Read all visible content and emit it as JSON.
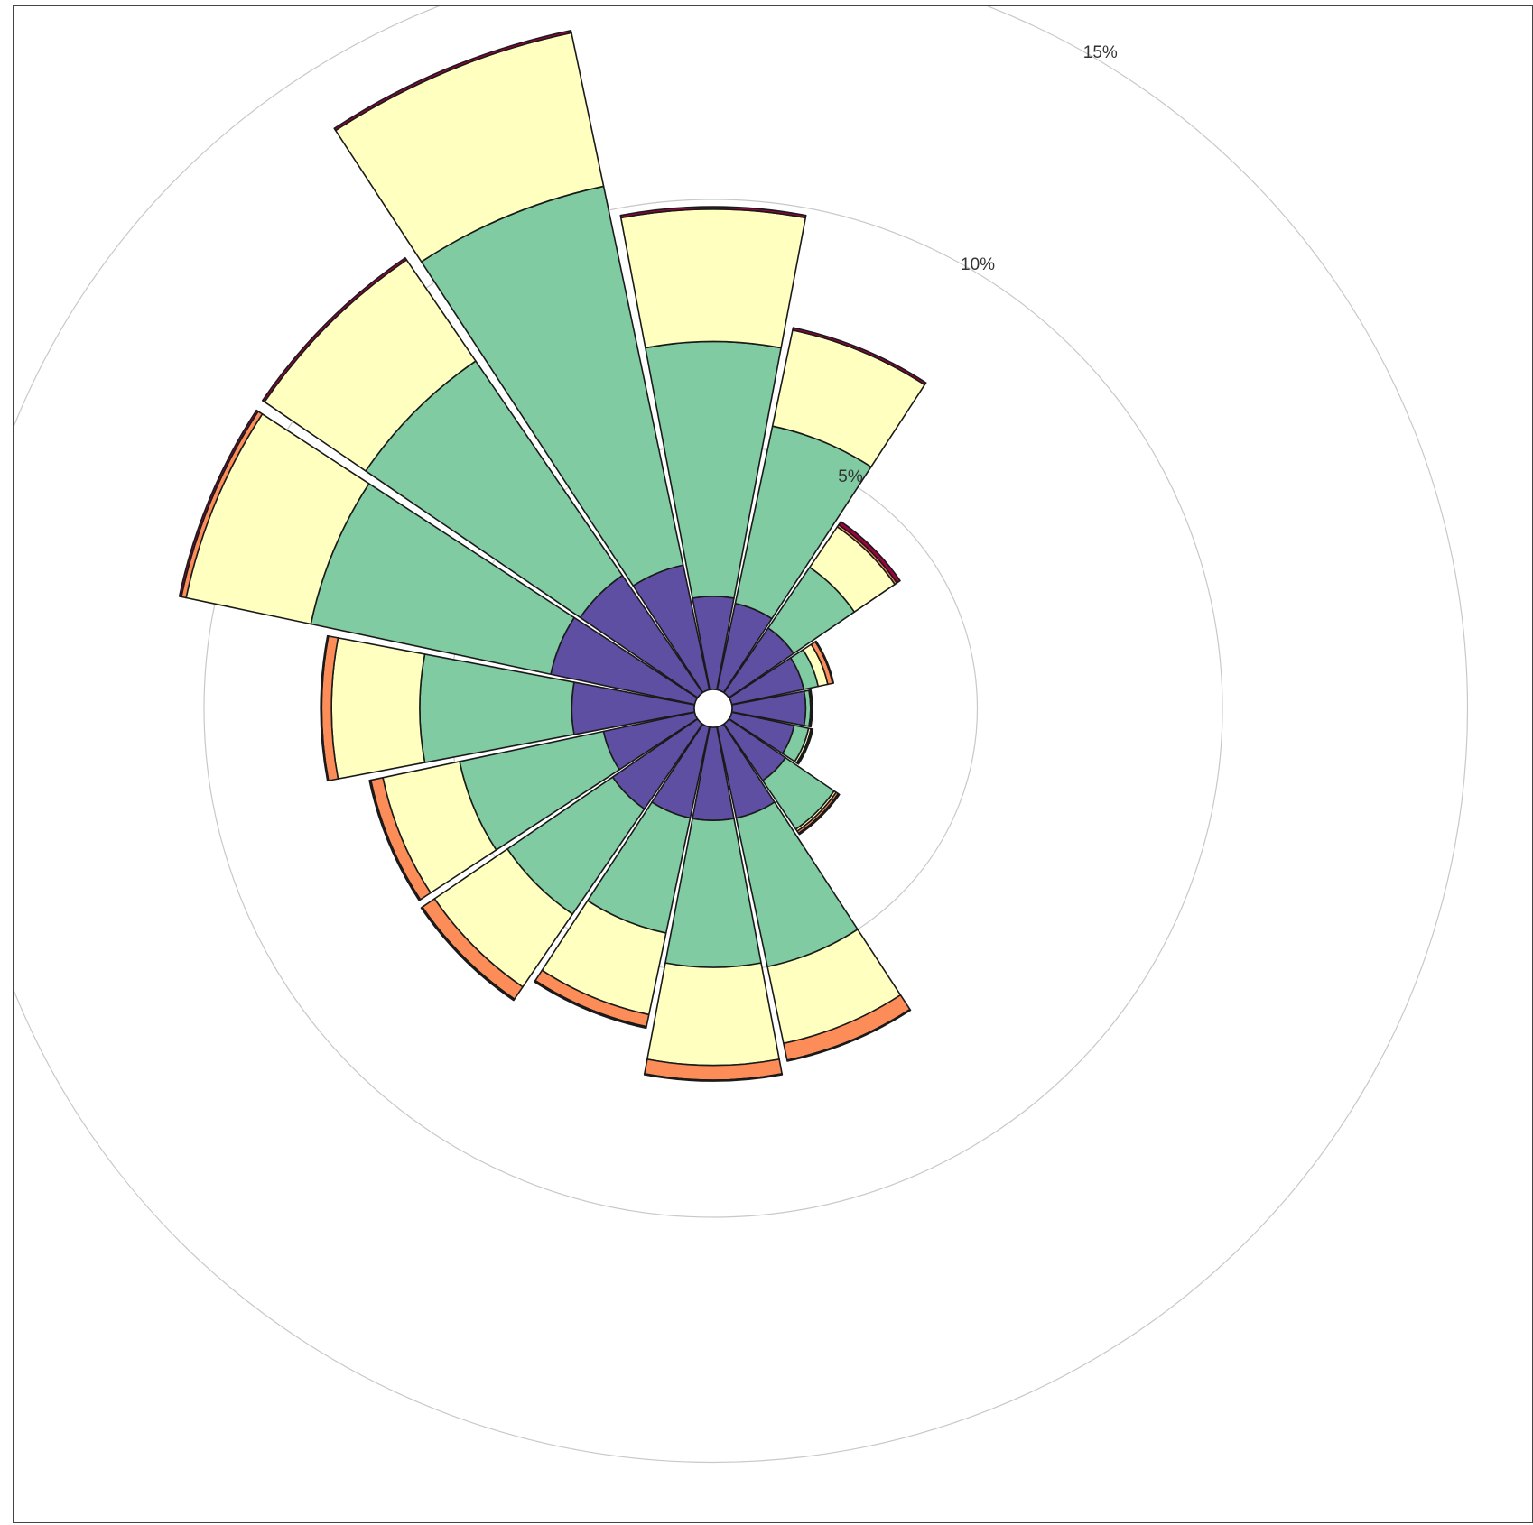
{
  "chart_data": {
    "type": "wind-rose",
    "title": "",
    "direction_count": 16,
    "grid": true,
    "radial_ticks": [
      {
        "value": 5,
        "label": "5%"
      },
      {
        "value": 10,
        "label": "10%"
      },
      {
        "value": 15,
        "label": "15%"
      }
    ],
    "colors": [
      "#5e4fa2",
      "#80cba2",
      "#ffffbf",
      "#fc8d59",
      "#9e0142"
    ],
    "stack_order": "inner-to-outer",
    "directions": [
      {
        "angle": 0,
        "values": [
          1.9,
          5.2,
          2.7,
          0.0,
          0.05
        ]
      },
      {
        "angle": 22.5,
        "values": [
          1.8,
          3.7,
          2.0,
          0.0,
          0.05
        ]
      },
      {
        "angle": 45,
        "values": [
          1.6,
          1.5,
          1.0,
          0.05,
          0.08
        ]
      },
      {
        "angle": 67.5,
        "values": [
          1.5,
          0.3,
          0.2,
          0.1,
          0.02
        ]
      },
      {
        "angle": 90,
        "values": [
          1.5,
          0.1,
          0.02,
          0.0,
          0.02
        ]
      },
      {
        "angle": 112.5,
        "values": [
          1.3,
          0.3,
          0.05,
          0.02,
          0.02
        ]
      },
      {
        "angle": 135,
        "values": [
          1.4,
          1.2,
          0.05,
          0.05,
          0.03
        ]
      },
      {
        "angle": 157.5,
        "values": [
          1.9,
          3.1,
          1.6,
          0.35,
          0.02
        ]
      },
      {
        "angle": 180,
        "values": [
          1.9,
          3.0,
          2.0,
          0.3,
          0.02
        ]
      },
      {
        "angle": 202.5,
        "values": [
          1.9,
          2.4,
          1.7,
          0.25,
          0.03
        ]
      },
      {
        "angle": 225,
        "values": [
          2.1,
          2.6,
          1.8,
          0.3,
          0.03
        ]
      },
      {
        "angle": 247.5,
        "values": [
          1.9,
          3.0,
          1.6,
          0.25,
          0.03
        ]
      },
      {
        "angle": 270,
        "values": [
          2.5,
          3.1,
          1.8,
          0.2,
          0.02
        ]
      },
      {
        "angle": 292.5,
        "values": [
          3.0,
          5.0,
          2.6,
          0.1,
          0.04
        ]
      },
      {
        "angle": 315,
        "values": [
          2.9,
          5.3,
          2.5,
          0.0,
          0.05
        ]
      },
      {
        "angle": 337.5,
        "values": [
          2.6,
          7.9,
          3.2,
          0.0,
          0.05
        ]
      }
    ]
  }
}
